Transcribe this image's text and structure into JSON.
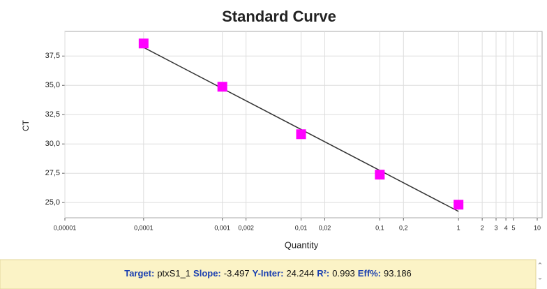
{
  "chart_data": {
    "type": "scatter",
    "title": "Standard Curve",
    "x_label": "Quantity",
    "y_label": "CT",
    "x": [
      0.0001,
      0.001,
      0.01,
      0.1,
      1
    ],
    "values": [
      38.57,
      34.88,
      30.83,
      27.38,
      24.82
    ],
    "color": "#ff00ff",
    "line_color": "#333333",
    "log_x": true,
    "grid": true,
    "xlim": [
      1e-05,
      10
    ],
    "ylim": [
      23.7,
      39.6
    ],
    "xticks": [
      {
        "value": 1e-05,
        "label": "0,00001"
      },
      {
        "value": 0.0001,
        "label": "0,0001"
      },
      {
        "value": 0.001,
        "label": "0,001"
      },
      {
        "value": 0.002,
        "label": "0,002"
      },
      {
        "value": 0.01,
        "label": "0,01"
      },
      {
        "value": 0.02,
        "label": "0,02"
      },
      {
        "value": 0.1,
        "label": "0,1"
      },
      {
        "value": 0.2,
        "label": "0,2"
      },
      1,
      2,
      3,
      4,
      5,
      10
    ],
    "yticks": [
      {
        "value": 25,
        "label": "25,0"
      },
      {
        "value": 27.5,
        "label": "27,5"
      },
      {
        "value": 30,
        "label": "30,0"
      },
      {
        "value": 32.5,
        "label": "32,5"
      },
      {
        "value": 35,
        "label": "35,0"
      },
      {
        "value": 37.5,
        "label": "37,5"
      }
    ],
    "fit": {
      "target_label": "Target:",
      "target": "ptxS1_1",
      "slope_label": "Slope:",
      "slope": -3.497,
      "intercept_label": "Y-Inter:",
      "intercept": 24.244,
      "r2_label": "R²:",
      "r2": 0.993,
      "eff_label": "Eff%:",
      "eff": 93.186
    }
  }
}
